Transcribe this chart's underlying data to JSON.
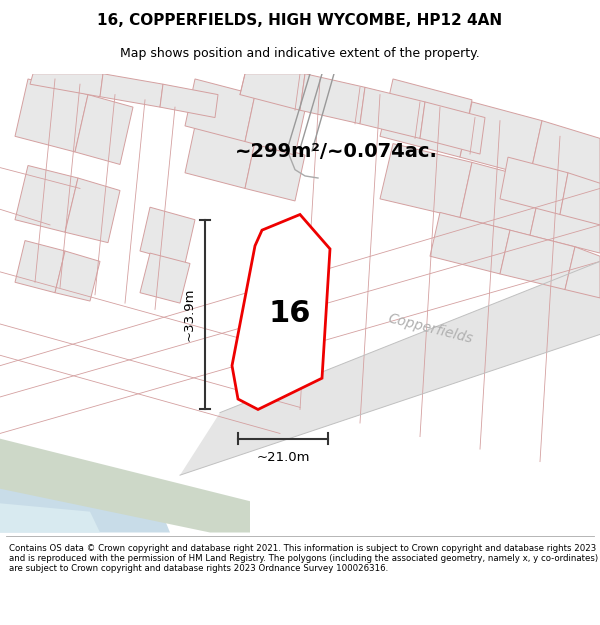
{
  "title": "16, COPPERFIELDS, HIGH WYCOMBE, HP12 4AN",
  "subtitle": "Map shows position and indicative extent of the property.",
  "area_text": "~299m²/~0.074ac.",
  "label_16": "16",
  "dim_height": "~33.9m",
  "dim_width": "~21.0m",
  "road_label": "Copperfields",
  "footer": "Contains OS data © Crown copyright and database right 2021. This information is subject to Crown copyright and database rights 2023 and is reproduced with the permission of HM Land Registry. The polygons (including the associated geometry, namely x, y co-ordinates) are subject to Crown copyright and database rights 2023 Ordnance Survey 100026316.",
  "map_bg": "#f7f7f7",
  "block_fill": "#e8e8e8",
  "block_edge": "#d4a0a0",
  "road_fill": "#e0e0e0",
  "road_label_color": "#b0b0b0",
  "boundary_red": "#ee0000",
  "prop_fill": "#ffffff",
  "green_fill": "#cdd8c8",
  "water_fill": "#c8dce8",
  "water2_fill": "#d8eaf0",
  "dim_color": "#333333",
  "title_size": 11,
  "subtitle_size": 9,
  "footer_size": 6.2
}
